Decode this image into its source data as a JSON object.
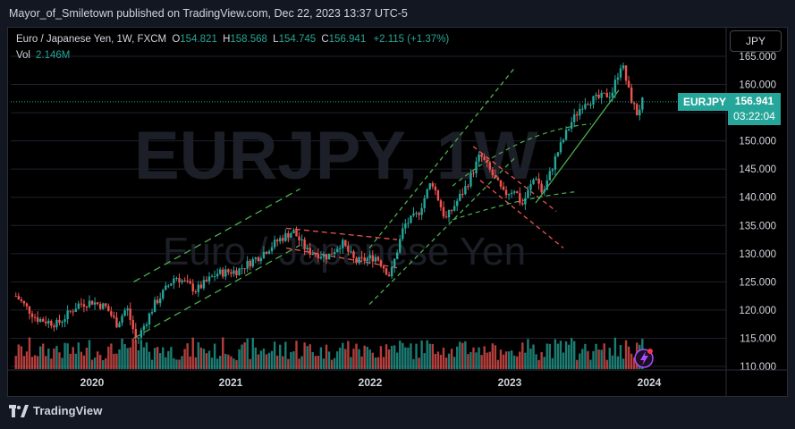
{
  "publisher_line": "Mayor_of_Smiletown published on TradingView.com, Dec 22, 2023 13:37 UTC-5",
  "brand": "TradingView",
  "currency_button": "JPY",
  "legend": {
    "symbol": "Euro / Japanese Yen, 1W, FXCM",
    "open_label": "O",
    "open": "154.821",
    "high_label": "H",
    "high": "158.568",
    "low_label": "L",
    "low": "154.745",
    "close_label": "C",
    "close": "156.941",
    "change": "+2.115 (+1.37%)",
    "vol_label": "Vol",
    "vol": "2.146M"
  },
  "price_tag": {
    "symbol": "EURJPY",
    "price": "156.941",
    "countdown": "03:22:04"
  },
  "watermark": {
    "ticker": "EURJPY, 1W",
    "name": "Euro / Japanese Yen"
  },
  "colors": {
    "up": "#26a69a",
    "down": "#ef5350",
    "green_channel": "#4caf50",
    "red_channel": "#ef5350",
    "background": "#000000"
  },
  "chart_data": {
    "type": "candlestick",
    "timeframe": "1W",
    "y_axis": {
      "ticks": [
        "165.000",
        "160.000",
        "155.000",
        "150.000",
        "145.000",
        "140.000",
        "135.000",
        "130.000",
        "125.000",
        "120.000",
        "115.000",
        "110.000"
      ],
      "range": [
        110,
        165
      ]
    },
    "x_axis": {
      "ticks": [
        "2020",
        "2021",
        "2022",
        "2023",
        "2024"
      ]
    },
    "price_path": [
      {
        "t": 2019.45,
        "p": 122.5
      },
      {
        "t": 2019.6,
        "p": 118.5
      },
      {
        "t": 2019.75,
        "p": 117.5
      },
      {
        "t": 2019.9,
        "p": 121.0
      },
      {
        "t": 2020.0,
        "p": 121.5
      },
      {
        "t": 2020.1,
        "p": 120.5
      },
      {
        "t": 2020.18,
        "p": 117.5
      },
      {
        "t": 2020.25,
        "p": 120.5
      },
      {
        "t": 2020.32,
        "p": 114.5
      },
      {
        "t": 2020.45,
        "p": 121.0
      },
      {
        "t": 2020.6,
        "p": 126.0
      },
      {
        "t": 2020.75,
        "p": 123.5
      },
      {
        "t": 2020.9,
        "p": 126.5
      },
      {
        "t": 2021.05,
        "p": 127.0
      },
      {
        "t": 2021.2,
        "p": 129.5
      },
      {
        "t": 2021.35,
        "p": 132.5
      },
      {
        "t": 2021.45,
        "p": 134.0
      },
      {
        "t": 2021.55,
        "p": 130.5
      },
      {
        "t": 2021.7,
        "p": 129.5
      },
      {
        "t": 2021.8,
        "p": 132.0
      },
      {
        "t": 2021.9,
        "p": 128.5
      },
      {
        "t": 2022.05,
        "p": 129.5
      },
      {
        "t": 2022.15,
        "p": 126.0
      },
      {
        "t": 2022.25,
        "p": 135.0
      },
      {
        "t": 2022.35,
        "p": 137.0
      },
      {
        "t": 2022.45,
        "p": 143.0
      },
      {
        "t": 2022.55,
        "p": 136.0
      },
      {
        "t": 2022.7,
        "p": 142.0
      },
      {
        "t": 2022.8,
        "p": 147.5
      },
      {
        "t": 2022.9,
        "p": 143.5
      },
      {
        "t": 2022.97,
        "p": 140.5
      },
      {
        "t": 2023.05,
        "p": 141.5
      },
      {
        "t": 2023.1,
        "p": 138.5
      },
      {
        "t": 2023.2,
        "p": 144.0
      },
      {
        "t": 2023.25,
        "p": 140.5
      },
      {
        "t": 2023.35,
        "p": 147.5
      },
      {
        "t": 2023.45,
        "p": 153.0
      },
      {
        "t": 2023.55,
        "p": 157.0
      },
      {
        "t": 2023.65,
        "p": 157.5
      },
      {
        "t": 2023.75,
        "p": 158.5
      },
      {
        "t": 2023.82,
        "p": 164.0
      },
      {
        "t": 2023.88,
        "p": 158.0
      },
      {
        "t": 2023.93,
        "p": 154.821
      },
      {
        "t": 2023.97,
        "p": 156.941
      }
    ]
  }
}
